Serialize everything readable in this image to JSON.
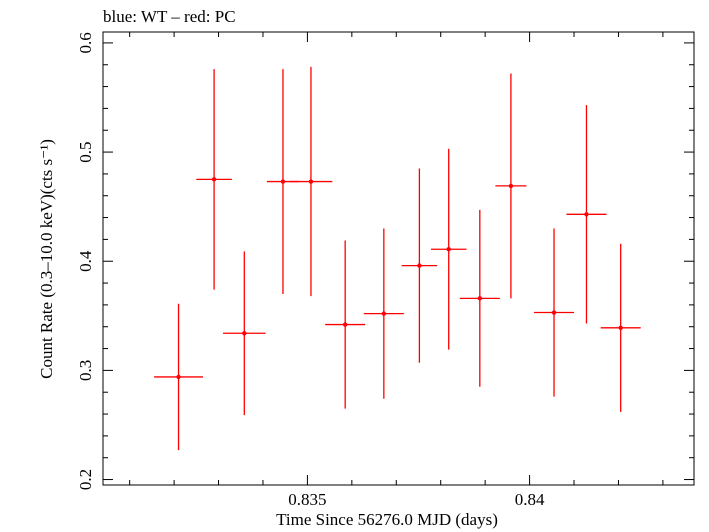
{
  "chart_data": {
    "type": "scatter",
    "title": "blue: WT – red: PC",
    "xlabel": "Time Since 56276.0 MJD (days)",
    "ylabel": "Count Rate (0.3–10.0 keV)(cts s⁻¹)",
    "xlim": [
      0.8304,
      0.8437
    ],
    "ylim": [
      0.195,
      0.61
    ],
    "xticks": [
      0.835,
      0.84
    ],
    "xtick_labels": [
      "0.835",
      "0.84"
    ],
    "yticks": [
      0.2,
      0.3,
      0.4,
      0.5,
      0.6
    ],
    "ytick_labels": [
      "0.2",
      "0.3",
      "0.4",
      "0.5",
      "0.6"
    ],
    "grid": false,
    "series": [
      {
        "color": "#ff0000",
        "points": [
          {
            "x": 0.8321,
            "xerr": 0.00055,
            "y": 0.294,
            "yerr": 0.067
          },
          {
            "x": 0.8329,
            "xerr": 0.0004,
            "y": 0.475,
            "yerr": 0.101
          },
          {
            "x": 0.83358,
            "xerr": 0.00048,
            "y": 0.334,
            "yerr": 0.075
          },
          {
            "x": 0.83445,
            "xerr": 0.00036,
            "y": 0.473,
            "yerr": 0.103
          },
          {
            "x": 0.83508,
            "xerr": 0.00048,
            "y": 0.473,
            "yerr": 0.105
          },
          {
            "x": 0.83585,
            "xerr": 0.00045,
            "y": 0.342,
            "yerr": 0.077
          },
          {
            "x": 0.83672,
            "xerr": 0.00045,
            "y": 0.352,
            "yerr": 0.078
          },
          {
            "x": 0.83752,
            "xerr": 0.0004,
            "y": 0.396,
            "yerr": 0.089
          },
          {
            "x": 0.83818,
            "xerr": 0.0004,
            "y": 0.411,
            "yerr": 0.092
          },
          {
            "x": 0.83888,
            "xerr": 0.00045,
            "y": 0.366,
            "yerr": 0.081
          },
          {
            "x": 0.83958,
            "xerr": 0.00035,
            "y": 0.469,
            "yerr": 0.103
          },
          {
            "x": 0.84055,
            "xerr": 0.00045,
            "y": 0.353,
            "yerr": 0.077
          },
          {
            "x": 0.84128,
            "xerr": 0.00045,
            "y": 0.443,
            "yerr": 0.1
          },
          {
            "x": 0.84205,
            "xerr": 0.00045,
            "y": 0.339,
            "yerr": 0.077
          }
        ]
      }
    ]
  }
}
